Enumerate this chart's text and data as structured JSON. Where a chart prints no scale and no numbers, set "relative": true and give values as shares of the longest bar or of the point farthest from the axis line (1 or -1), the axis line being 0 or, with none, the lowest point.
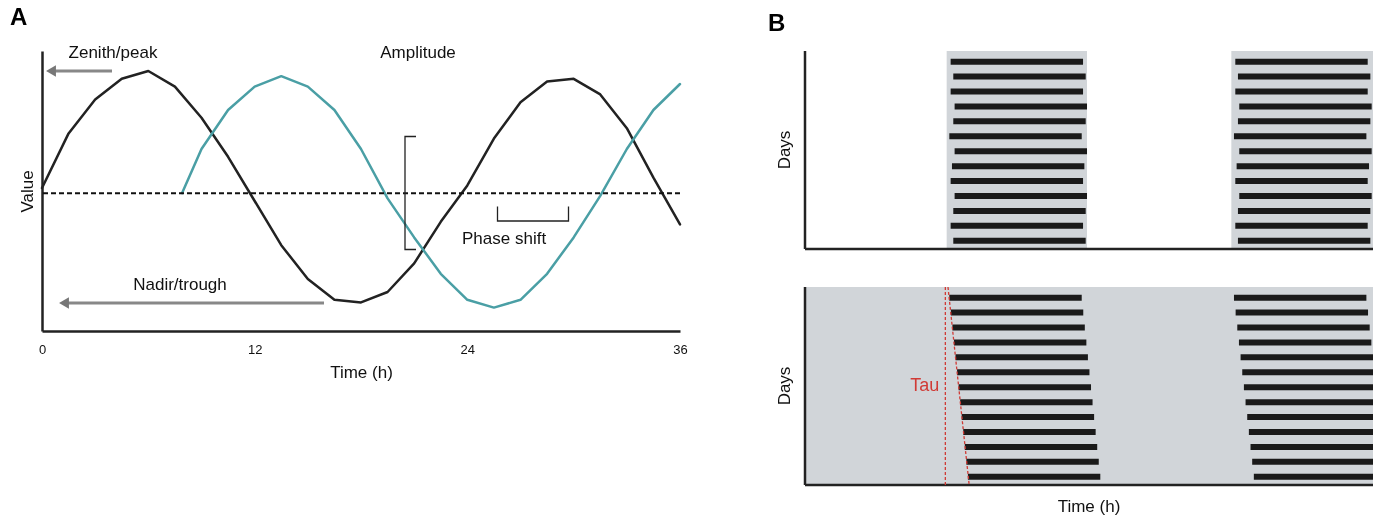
{
  "chart_data": [
    {
      "type": "line",
      "title": "A",
      "xlabel": "Time (h)",
      "ylabel": "Value",
      "relative": true,
      "xlim": [
        0,
        36
      ],
      "xticks": [
        0,
        12,
        24,
        36
      ],
      "series": [
        {
          "color": "#222222",
          "x": [
            0,
            1.5,
            3,
            4.5,
            6,
            7.5,
            9,
            10.5,
            12,
            13.5,
            15,
            16.5,
            18,
            19.5,
            21,
            22.5,
            24,
            25.5,
            27,
            28.5,
            30,
            31.5,
            33,
            34.5,
            36
          ],
          "values": [
            0.55,
            0.76,
            0.89,
            0.97,
            1.0,
            0.94,
            0.82,
            0.67,
            0.5,
            0.33,
            0.2,
            0.12,
            0.11,
            0.15,
            0.26,
            0.42,
            0.56,
            0.74,
            0.88,
            0.96,
            0.97,
            0.91,
            0.78,
            0.59,
            0.41
          ]
        },
        {
          "color": "#4a9fa5",
          "x": [
            7.9,
            9,
            10.5,
            12,
            13.5,
            15,
            16.5,
            18,
            19.5,
            21,
            22.5,
            24,
            25.5,
            27,
            28.5,
            30,
            31.5,
            33,
            34.5,
            36
          ],
          "values": [
            0.53,
            0.7,
            0.85,
            0.94,
            0.98,
            0.94,
            0.85,
            0.7,
            0.51,
            0.36,
            0.22,
            0.12,
            0.09,
            0.12,
            0.22,
            0.36,
            0.52,
            0.7,
            0.85,
            0.95
          ]
        }
      ],
      "ref_lines": [
        {
          "axis": "y",
          "value": 0.53,
          "color": "#111111",
          "line_style": "dashed"
        }
      ],
      "annotations": [
        "Zenith/peak",
        "Amplitude",
        "Phase shift",
        "Nadir/trough"
      ]
    },
    {
      "type": "other",
      "title": "B",
      "xlabel": "Time (h)",
      "annotations": [
        "Days",
        "Days",
        "Tau"
      ]
    }
  ]
}
